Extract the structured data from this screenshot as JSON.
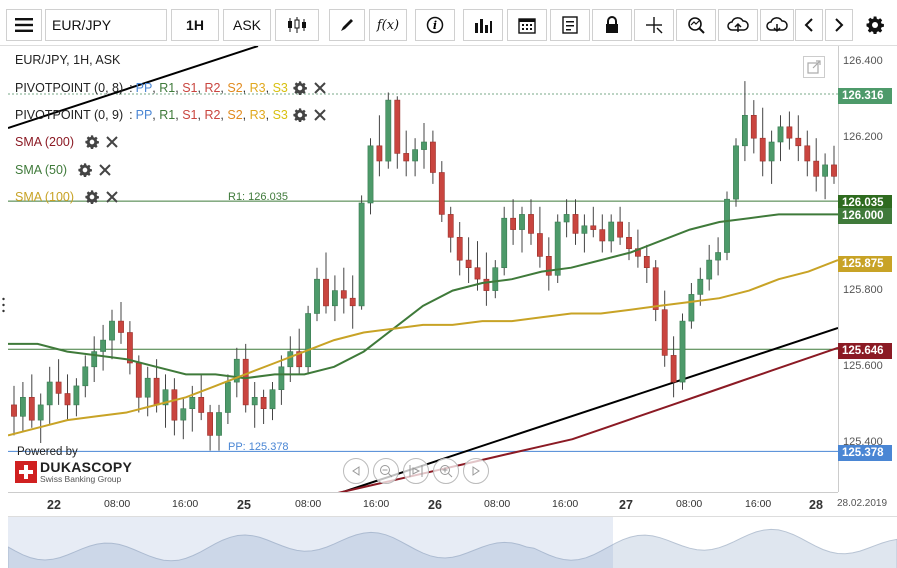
{
  "toolbar": {
    "menu_icon": "hamburger-menu-icon",
    "instrument": "EUR/JPY",
    "period": "1H",
    "side": "ASK",
    "tools": [
      "candles-icon",
      "draw-pencil-icon",
      "function-icon",
      "info-icon",
      "bar-chart-icon",
      "calendar-icon",
      "report-icon",
      "lock-icon",
      "crosshair-icon",
      "zoom-icon",
      "upload-icon",
      "download-icon",
      "arrow-left-icon",
      "arrow-right-icon",
      "settings-gear-icon"
    ]
  },
  "legend": {
    "title": "EUR/JPY, 1H, ASK",
    "pivot1": {
      "name": "PIVOTPOINT (0, 8)",
      "pp": "PP",
      "r1": "R1",
      "s1": "S1",
      "r2": "R2",
      "s2": "S2",
      "r3": "R3",
      "s3": "S3"
    },
    "pivot2": {
      "name": "PIVOTPOINT (0, 9)",
      "pp": "PP",
      "r1": "R1",
      "s1": "S1",
      "r2": "R2",
      "s2": "S2",
      "r3": "R3",
      "s3": "S3"
    },
    "sep": ":",
    "sma200": "SMA (200)",
    "sma50": "SMA (50)",
    "sma100": "SMA (100)"
  },
  "annotations": {
    "r1_label": "R1: 126.035",
    "pp_label": "PP: 125.378"
  },
  "branding": {
    "powered_by": "Powered by",
    "logo": "DUKASCOPY",
    "tagline": "Swiss Banking Group"
  },
  "price_axis": {
    "ticks": [
      "126.400",
      "126.200",
      "125.800",
      "125.600",
      "125.400"
    ],
    "tags": [
      {
        "value": "126.316",
        "color": "#4d9a6a"
      },
      {
        "value": "126.035",
        "color": "#2e6b1f"
      },
      {
        "value": "126.000",
        "color": "#3f7a3a"
      },
      {
        "value": "125.875",
        "color": "#c8a326"
      },
      {
        "value": "125.646",
        "color": "#8b1a24"
      },
      {
        "value": "125.378",
        "color": "#4a86d4"
      }
    ]
  },
  "time_axis": {
    "labels": [
      {
        "t": "22",
        "bold": true
      },
      {
        "t": "08:00"
      },
      {
        "t": "16:00"
      },
      {
        "t": "25",
        "bold": true
      },
      {
        "t": "08:00"
      },
      {
        "t": "16:00"
      },
      {
        "t": "26",
        "bold": true
      },
      {
        "t": "08:00"
      },
      {
        "t": "16:00"
      },
      {
        "t": "27",
        "bold": true
      },
      {
        "t": "08:00"
      },
      {
        "t": "16:00"
      },
      {
        "t": "28",
        "bold": true
      },
      {
        "t": "28.02.2019"
      }
    ]
  },
  "colors": {
    "bull": "#4d9a6a",
    "bear": "#c9453f",
    "sma200": "#8b1a24",
    "sma50": "#3f7a3a",
    "sma100": "#c8a326",
    "pp": "#4a86d4",
    "r1": "#3f7a3a",
    "trend": "#000000"
  },
  "chart_data": {
    "type": "candlestick",
    "ylim": [
      125.2,
      126.48
    ],
    "series_close_last": 126.316,
    "levels": {
      "R1": 126.035,
      "PP": 125.378,
      "SMA50": 126.0,
      "SMA100": 125.875,
      "SMA200": 125.646
    }
  }
}
